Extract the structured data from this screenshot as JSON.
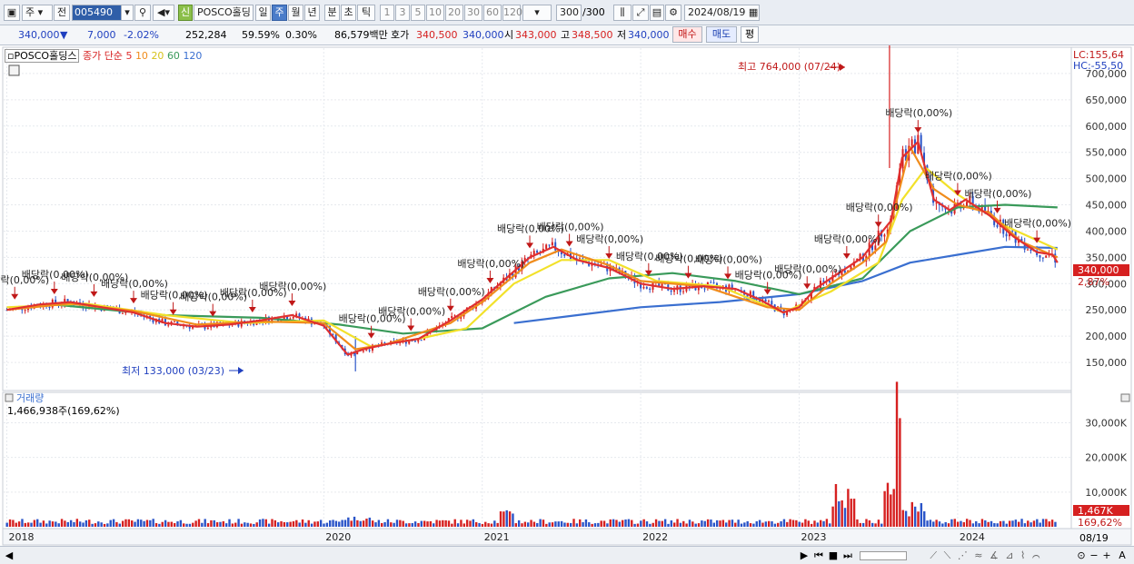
{
  "toolbar": {
    "period_type": "주",
    "prev_label": "전",
    "stock_code": "005490",
    "new_badge": "신",
    "stock_name": "POSCO홀딩스",
    "periods": [
      "일",
      "주",
      "월",
      "년",
      "분",
      "초",
      "틱"
    ],
    "active_period": "주",
    "intervals": [
      "1",
      "3",
      "5",
      "10",
      "20",
      "30",
      "60",
      "120"
    ],
    "count": "300",
    "count_total": "/300",
    "date": "2024/08/19"
  },
  "quote": {
    "price": "340,000",
    "direction": "▼",
    "change": "7,000",
    "change_pct": "-2.02%",
    "volume": "252,284",
    "ratio": "59.59%",
    "turnover": "0.30%",
    "amount": "86,579백만",
    "bid_label": "호가",
    "bid": "340,500",
    "ask": "340,000",
    "open_label": "시",
    "open": "343,000",
    "high_label": "고",
    "high": "348,500",
    "low_label": "저",
    "low": "340,000",
    "buy_label": "매수",
    "sell_label": "매도",
    "eval_label": "평"
  },
  "legend": {
    "name": "POSCO홀딩스",
    "ma_title": "종가 단순",
    "ma_periods": [
      "5",
      "10",
      "20",
      "60",
      "120"
    ],
    "ma_colors": [
      "#e03030",
      "#f08c1c",
      "#f2e12a",
      "#3a9a5a",
      "#3a6fd0"
    ]
  },
  "volume_panel": {
    "title": "거래량",
    "value": "1,466,938주(169,62%)",
    "current": "1,467K",
    "current_pct": "169,62%"
  },
  "right_labels": {
    "lc": "LC:155,64",
    "hc": "HC:-55,50",
    "last_price": "340,000",
    "last_pct": "2,87%"
  },
  "annotations": {
    "high": "최고 764,000 (07/24)",
    "low": "최저 133,000 (03/23)",
    "dividend": "배당락(0,00%)"
  },
  "bottom": {
    "date_right": "08/19"
  },
  "chart_data": {
    "type": "line",
    "title": "",
    "xlabel": "",
    "ylabel": "",
    "x_ticks": [
      "2018",
      "2020",
      "2021",
      "2022",
      "2023",
      "2024"
    ],
    "y_ticks": [
      "150,000",
      "200,000",
      "250,000",
      "300,000",
      "350,000",
      "400,000",
      "450,000",
      "500,000",
      "550,000",
      "600,000",
      "650,000",
      "700,000"
    ],
    "ylim": [
      100000,
      750000
    ],
    "volume_ticks": [
      "10,000K",
      "20,000K",
      "30,000K"
    ],
    "volume_ylim": [
      0,
      38000
    ],
    "series": [
      {
        "name": "5",
        "color": "#e03030",
        "x": [
          2018.0,
          2018.2,
          2018.4,
          2018.6,
          2018.8,
          2019.0,
          2019.2,
          2019.4,
          2019.6,
          2019.8,
          2020.0,
          2020.15,
          2020.25,
          2020.4,
          2020.6,
          2020.8,
          2021.0,
          2021.15,
          2021.3,
          2021.45,
          2021.6,
          2021.8,
          2022.0,
          2022.2,
          2022.4,
          2022.6,
          2022.75,
          2022.9,
          2023.0,
          2023.1,
          2023.25,
          2023.4,
          2023.5,
          2023.58,
          2023.65,
          2023.75,
          2023.85,
          2023.95,
          2024.05,
          2024.2,
          2024.35,
          2024.5,
          2024.6,
          2024.63
        ],
        "y": [
          250000,
          260000,
          265000,
          255000,
          245000,
          225000,
          218000,
          222000,
          230000,
          240000,
          220000,
          165000,
          175000,
          185000,
          195000,
          230000,
          270000,
          310000,
          350000,
          370000,
          345000,
          330000,
          300000,
          290000,
          295000,
          290000,
          270000,
          245000,
          255000,
          290000,
          320000,
          350000,
          390000,
          420000,
          540000,
          570000,
          460000,
          440000,
          460000,
          430000,
          390000,
          360000,
          355000,
          340000
        ]
      },
      {
        "name": "10",
        "color": "#f08c1c",
        "x": [
          2018.0,
          2018.4,
          2018.8,
          2019.2,
          2019.6,
          2020.0,
          2020.2,
          2020.4,
          2020.8,
          2021.0,
          2021.3,
          2021.5,
          2021.8,
          2022.0,
          2022.4,
          2022.8,
          2023.0,
          2023.2,
          2023.4,
          2023.55,
          2023.7,
          2023.85,
          2024.0,
          2024.2,
          2024.4,
          2024.63
        ],
        "y": [
          250000,
          262000,
          248000,
          222000,
          228000,
          225000,
          175000,
          185000,
          225000,
          265000,
          340000,
          365000,
          335000,
          305000,
          295000,
          255000,
          250000,
          300000,
          340000,
          380000,
          560000,
          480000,
          450000,
          435000,
          380000,
          350000
        ]
      },
      {
        "name": "20",
        "color": "#f2e12a",
        "x": [
          2018.0,
          2018.5,
          2019.0,
          2019.5,
          2020.0,
          2020.3,
          2020.6,
          2020.9,
          2021.2,
          2021.5,
          2021.8,
          2022.1,
          2022.5,
          2022.9,
          2023.2,
          2023.5,
          2023.65,
          2023.8,
          2024.0,
          2024.3,
          2024.63
        ],
        "y": [
          255000,
          262000,
          240000,
          225000,
          230000,
          180000,
          195000,
          215000,
          300000,
          345000,
          345000,
          305000,
          295000,
          245000,
          285000,
          340000,
          460000,
          520000,
          470000,
          410000,
          365000
        ]
      },
      {
        "name": "60",
        "color": "#3a9a5a",
        "x": [
          2018.3,
          2019.0,
          2019.6,
          2020.1,
          2020.5,
          2021.0,
          2021.4,
          2021.8,
          2022.2,
          2022.6,
          2023.0,
          2023.4,
          2023.7,
          2024.0,
          2024.3,
          2024.63
        ],
        "y": [
          260000,
          240000,
          235000,
          222000,
          205000,
          215000,
          275000,
          310000,
          320000,
          305000,
          280000,
          310000,
          400000,
          445000,
          450000,
          445000
        ]
      },
      {
        "name": "120",
        "color": "#3a6fd0",
        "x": [
          2021.2,
          2021.6,
          2022.0,
          2022.5,
          2023.0,
          2023.4,
          2023.7,
          2024.0,
          2024.3,
          2024.63
        ],
        "y": [
          225000,
          240000,
          255000,
          265000,
          280000,
          305000,
          340000,
          355000,
          370000,
          368000
        ]
      }
    ]
  }
}
